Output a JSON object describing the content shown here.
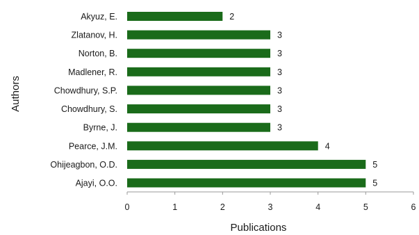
{
  "chart_data": {
    "type": "bar",
    "orientation": "horizontal",
    "categories": [
      "Akyuz, E.",
      "Zlatanov, H.",
      "Norton, B.",
      "Madlener, R.",
      "Chowdhury, S.P.",
      "Chowdhury, S.",
      "Byrne, J.",
      "Pearce, J.M.",
      "Ohijeagbon, O.D.",
      "Ajayi, O.O."
    ],
    "values": [
      2,
      3,
      3,
      3,
      3,
      3,
      3,
      4,
      5,
      5
    ],
    "data_labels": [
      "2",
      "3",
      "3",
      "3",
      "3",
      "3",
      "3",
      "4",
      "5",
      "5"
    ],
    "xlabel": "Publications",
    "ylabel": "Authors",
    "xlim": [
      0,
      6
    ],
    "xticks": [
      "0",
      "1",
      "2",
      "3",
      "4",
      "5",
      "6"
    ],
    "grid": false,
    "legend": "none",
    "bar_color": "#1a6b1a"
  }
}
